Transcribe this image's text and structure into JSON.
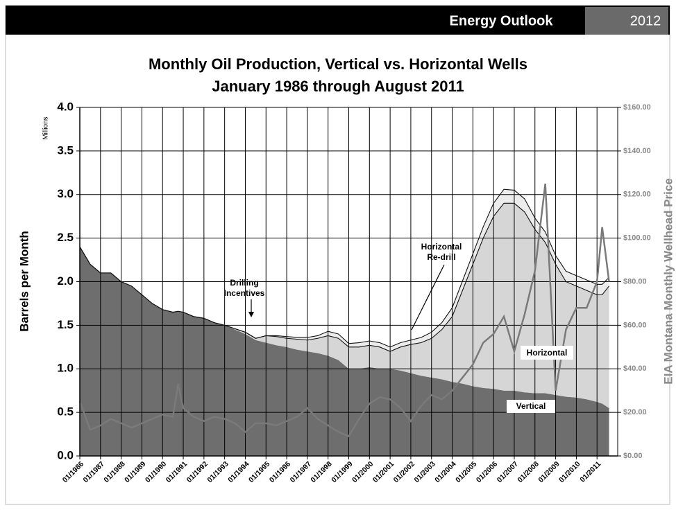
{
  "header": {
    "title": "Energy Outlook",
    "year": "2012"
  },
  "chart_data": {
    "type": "stacked-area",
    "title": [
      "Monthly Oil Production, Vertical vs. Horizontal Wells",
      "January 1986 through August 2011"
    ],
    "y_label": "Barrels per Month",
    "y_unit": "Millions",
    "y2_label": "EIA Montana Monthly Wellhead Price",
    "annotations": {
      "drilling_incentives": [
        "Drilling",
        "Incentives"
      ],
      "redrill": [
        "Horizontal",
        "Re-drill"
      ],
      "horizontal": "Horizontal",
      "vertical": "Vertical"
    },
    "x": [
      "01/1986",
      "07/1986",
      "01/1987",
      "07/1987",
      "01/1988",
      "07/1988",
      "01/1989",
      "07/1989",
      "01/1990",
      "07/1990",
      "10/1990",
      "01/1991",
      "07/1991",
      "01/1992",
      "07/1992",
      "01/1993",
      "07/1993",
      "01/1994",
      "07/1994",
      "01/1995",
      "07/1995",
      "01/1996",
      "07/1996",
      "01/1997",
      "07/1997",
      "01/1998",
      "07/1998",
      "01/1999",
      "07/1999",
      "01/2000",
      "07/2000",
      "01/2001",
      "07/2001",
      "01/2002",
      "07/2002",
      "01/2003",
      "07/2003",
      "01/2004",
      "07/2004",
      "01/2005",
      "07/2005",
      "01/2006",
      "07/2006",
      "01/2007",
      "07/2007",
      "01/2008",
      "07/2008",
      "01/2009",
      "07/2009",
      "01/2010",
      "07/2010",
      "01/2011",
      "04/2011",
      "08/2011"
    ],
    "xlim": [
      "01/1986",
      "01/2012"
    ],
    "xticks": [
      "01/1986",
      "01/1987",
      "01/1988",
      "01/1989",
      "01/1990",
      "01/1991",
      "01/1992",
      "01/1993",
      "01/1994",
      "01/1995",
      "01/1996",
      "01/1997",
      "01/1998",
      "01/1999",
      "01/2000",
      "01/2001",
      "01/2002",
      "01/2003",
      "01/2004",
      "01/2005",
      "01/2006",
      "01/2007",
      "01/2008",
      "01/2009",
      "01/2010",
      "01/2011"
    ],
    "ylim": [
      0,
      4
    ],
    "yticks": [
      {
        "value": 0,
        "label": "0.0"
      },
      {
        "value": 0.5,
        "label": "0.5"
      },
      {
        "value": 1,
        "label": "1.0"
      },
      {
        "value": 1.5,
        "label": "1.5"
      },
      {
        "value": 2,
        "label": "2.0"
      },
      {
        "value": 2.5,
        "label": "2.5"
      },
      {
        "value": 3,
        "label": "3.0"
      },
      {
        "value": 3.5,
        "label": "3.5"
      },
      {
        "value": 4,
        "label": "4.0"
      }
    ],
    "y2lim": [
      0,
      160
    ],
    "y2ticks": [
      {
        "value": 0,
        "label": "$0.00"
      },
      {
        "value": 20,
        "label": "$20.00"
      },
      {
        "value": 40,
        "label": "$40.00"
      },
      {
        "value": 60,
        "label": "$60.00"
      },
      {
        "value": 80,
        "label": "$80.00"
      },
      {
        "value": 100,
        "label": "$100.00"
      },
      {
        "value": 120,
        "label": "$120.00"
      },
      {
        "value": 140,
        "label": "$140.00"
      },
      {
        "value": 160,
        "label": "$160.00"
      }
    ],
    "grid": true,
    "series": [
      {
        "name": "Vertical",
        "color": "#6e6e6e",
        "stack": true,
        "values": [
          2.4,
          2.2,
          2.1,
          2.1,
          2.0,
          1.95,
          1.85,
          1.75,
          1.68,
          1.65,
          1.66,
          1.65,
          1.6,
          1.58,
          1.53,
          1.5,
          1.45,
          1.4,
          1.33,
          1.3,
          1.27,
          1.25,
          1.22,
          1.2,
          1.18,
          1.15,
          1.1,
          1.0,
          1.0,
          1.02,
          1.0,
          1.0,
          0.98,
          0.95,
          0.92,
          0.9,
          0.88,
          0.85,
          0.83,
          0.8,
          0.78,
          0.77,
          0.75,
          0.75,
          0.73,
          0.72,
          0.72,
          0.7,
          0.68,
          0.67,
          0.65,
          0.62,
          0.6,
          0.55
        ]
      },
      {
        "name": "Horizontal",
        "color": "#d6d6d6",
        "stack": true,
        "values": [
          0,
          0,
          0,
          0,
          0,
          0,
          0,
          0,
          0,
          0,
          0,
          0,
          0,
          0,
          0,
          0,
          0.01,
          0.02,
          0.02,
          0.08,
          0.1,
          0.1,
          0.12,
          0.13,
          0.17,
          0.23,
          0.25,
          0.25,
          0.25,
          0.25,
          0.25,
          0.2,
          0.27,
          0.33,
          0.38,
          0.45,
          0.57,
          0.75,
          1.07,
          1.4,
          1.72,
          1.98,
          2.15,
          2.15,
          2.07,
          1.88,
          1.73,
          1.5,
          1.32,
          1.28,
          1.25,
          1.23,
          1.25,
          1.4
        ]
      },
      {
        "name": "Horizontal Re-drill",
        "color": "#ececec",
        "stack": true,
        "values": [
          0,
          0,
          0,
          0,
          0,
          0,
          0,
          0,
          0,
          0,
          0,
          0,
          0,
          0,
          0,
          0,
          0,
          0,
          0,
          0,
          0.01,
          0.02,
          0.02,
          0.03,
          0.03,
          0.05,
          0.05,
          0.04,
          0.05,
          0.05,
          0.05,
          0.05,
          0.05,
          0.05,
          0.06,
          0.07,
          0.08,
          0.1,
          0.11,
          0.12,
          0.13,
          0.15,
          0.16,
          0.15,
          0.15,
          0.13,
          0.12,
          0.1,
          0.12,
          0.12,
          0.12,
          0.12,
          0.12,
          0.1
        ]
      },
      {
        "name": "Wellhead Price",
        "color": "#7a7a7a",
        "axis": "y2",
        "values": [
          25,
          12,
          14,
          17,
          15,
          13,
          15,
          17,
          19,
          18,
          33,
          22,
          18,
          16,
          18,
          17,
          15,
          11,
          15,
          15,
          14,
          16,
          18,
          22,
          17,
          14,
          11,
          9,
          17,
          24,
          27,
          26,
          22,
          16,
          23,
          28,
          26,
          30,
          36,
          42,
          52,
          56,
          64,
          48,
          65,
          85,
          125,
          30,
          58,
          68,
          68,
          80,
          105,
          80
        ]
      }
    ]
  }
}
